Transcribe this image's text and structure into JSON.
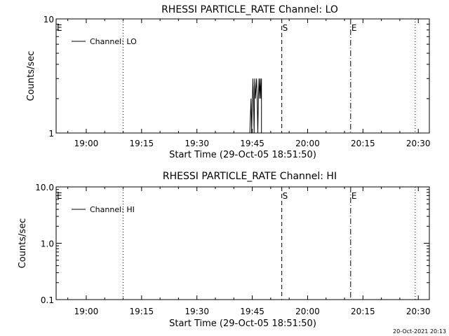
{
  "footer_timestamp": "20-Oct-2021 20:13",
  "chart_data": [
    {
      "type": "line",
      "title": "RHESSI PARTICLE_RATE Channel: LO",
      "xlabel": "Start Time (29-Oct-05 18:51:50)",
      "ylabel": "Counts/sec",
      "yscale": "log",
      "xlim": [
        "18:51:50",
        "20:33:00"
      ],
      "ylim": [
        1,
        10
      ],
      "x_ticks": [
        "19:00",
        "19:15",
        "19:30",
        "19:45",
        "20:00",
        "20:15",
        "20:30"
      ],
      "y_ticks": [
        "1",
        "10"
      ],
      "legend": {
        "entries": [
          "Channel: LO"
        ],
        "placement": "top-left"
      },
      "markers": [
        {
          "time": "19:10:00",
          "label": "",
          "style": "dotted"
        },
        {
          "time": "19:53:00",
          "label": "S",
          "style": "dashed"
        },
        {
          "time": "20:11:40",
          "label": "E",
          "style": "dash-dot"
        },
        {
          "time": "20:29:10",
          "label": "",
          "style": "dotted"
        }
      ],
      "edge_label": "E",
      "series": [
        {
          "name": "Channel: LO",
          "points": [
            [
              "19:44:20",
              1
            ],
            [
              "19:44:40",
              2
            ],
            [
              "19:44:50",
              1
            ],
            [
              "19:45:10",
              3
            ],
            [
              "19:45:20",
              2
            ],
            [
              "19:45:30",
              1
            ],
            [
              "19:45:40",
              3
            ],
            [
              "19:45:50",
              2
            ],
            [
              "19:46:10",
              3
            ],
            [
              "19:46:20",
              2
            ],
            [
              "19:46:30",
              1
            ],
            [
              "19:46:40",
              2
            ],
            [
              "19:46:50",
              3
            ],
            [
              "19:47:00",
              2
            ],
            [
              "19:47:10",
              3
            ],
            [
              "19:47:20",
              2
            ],
            [
              "19:47:30",
              3
            ]
          ]
        }
      ]
    },
    {
      "type": "line",
      "title": "RHESSI PARTICLE_RATE Channel: HI",
      "xlabel": "Start Time (29-Oct-05 18:51:50)",
      "ylabel": "Counts/sec",
      "yscale": "log",
      "xlim": [
        "18:51:50",
        "20:33:00"
      ],
      "ylim": [
        0.1,
        10
      ],
      "x_ticks": [
        "19:00",
        "19:15",
        "19:30",
        "19:45",
        "20:00",
        "20:15",
        "20:30"
      ],
      "y_ticks": [
        "0.1",
        "1.0",
        "10.0"
      ],
      "legend": {
        "entries": [
          "Channel: HI"
        ],
        "placement": "top-left"
      },
      "markers": [
        {
          "time": "19:10:00",
          "label": "",
          "style": "dotted"
        },
        {
          "time": "19:53:00",
          "label": "S",
          "style": "dashed"
        },
        {
          "time": "20:11:40",
          "label": "E",
          "style": "dash-dot"
        },
        {
          "time": "20:29:10",
          "label": "",
          "style": "dotted"
        }
      ],
      "edge_label": "E",
      "series": [
        {
          "name": "Channel: HI",
          "points": []
        }
      ]
    }
  ]
}
